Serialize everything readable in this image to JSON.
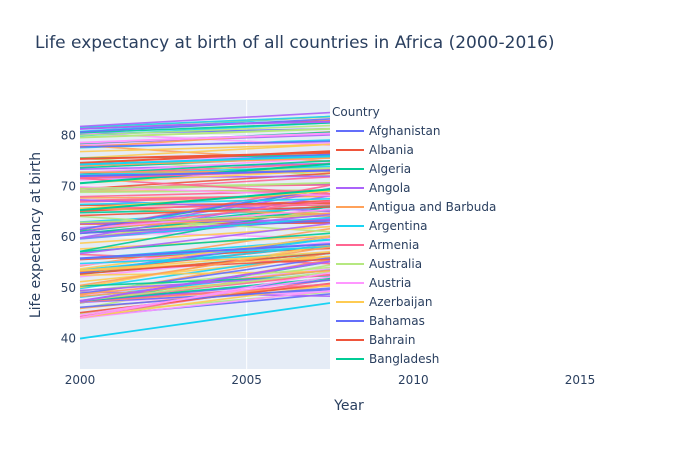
{
  "chart_data": {
    "type": "line",
    "title": "Life expectancy at birth of all countries in Africa (2000-2016)",
    "xlabel": "Year",
    "ylabel": "Life expectancy at birth",
    "xlim": [
      2000,
      2017.5
    ],
    "ylim": [
      34,
      87
    ],
    "xticks": [
      2000,
      2005,
      2010,
      2015
    ],
    "yticks": [
      40,
      50,
      60,
      70,
      80
    ],
    "grid": true,
    "legend_title": "Country",
    "legend_position": "right",
    "series": [
      {
        "name": "Afghanistan",
        "color": "#636efa",
        "x": [
          2000,
          2007.5
        ],
        "y": [
          55.8,
          58.6
        ]
      },
      {
        "name": "Albania",
        "color": "#EF553B",
        "x": [
          2000,
          2007.5
        ],
        "y": [
          74.6,
          76.9
        ]
      },
      {
        "name": "Algeria",
        "color": "#00cc96",
        "x": [
          2000,
          2007.5
        ],
        "y": [
          70.6,
          74.4
        ]
      },
      {
        "name": "Angola",
        "color": "#ab63fa",
        "x": [
          2000,
          2007.5
        ],
        "y": [
          47.4,
          55.2
        ]
      },
      {
        "name": "Antigua and Barbuda",
        "color": "#FFA15A",
        "x": [
          2000,
          2007.5
        ],
        "y": [
          74.1,
          75.6
        ]
      },
      {
        "name": "Argentina",
        "color": "#19d3f3",
        "x": [
          2000,
          2007.5
        ],
        "y": [
          74.3,
          75.9
        ]
      },
      {
        "name": "Armenia",
        "color": "#FF6692",
        "x": [
          2000,
          2007.5
        ],
        "y": [
          71.6,
          73.2
        ]
      },
      {
        "name": "Australia",
        "color": "#B6E880",
        "x": [
          2000,
          2007.5
        ],
        "y": [
          79.6,
          81.3
        ]
      },
      {
        "name": "Austria",
        "color": "#FF97FF",
        "x": [
          2000,
          2007.5
        ],
        "y": [
          78.6,
          80.4
        ]
      },
      {
        "name": "Azerbaijan",
        "color": "#FECB52",
        "x": [
          2000,
          2007.5
        ],
        "y": [
          65.6,
          69.1
        ]
      },
      {
        "name": "Bahamas",
        "color": "#636efa",
        "x": [
          2000,
          2007.5
        ],
        "y": [
          72.0,
          73.1
        ]
      },
      {
        "name": "Bahrain",
        "color": "#EF553B",
        "x": [
          2000,
          2007.5
        ],
        "y": [
          75.4,
          76.6
        ]
      },
      {
        "name": "Bangladesh",
        "color": "#00cc96",
        "x": [
          2000,
          2007.5
        ],
        "y": [
          65.3,
          69.4
        ]
      }
    ]
  }
}
